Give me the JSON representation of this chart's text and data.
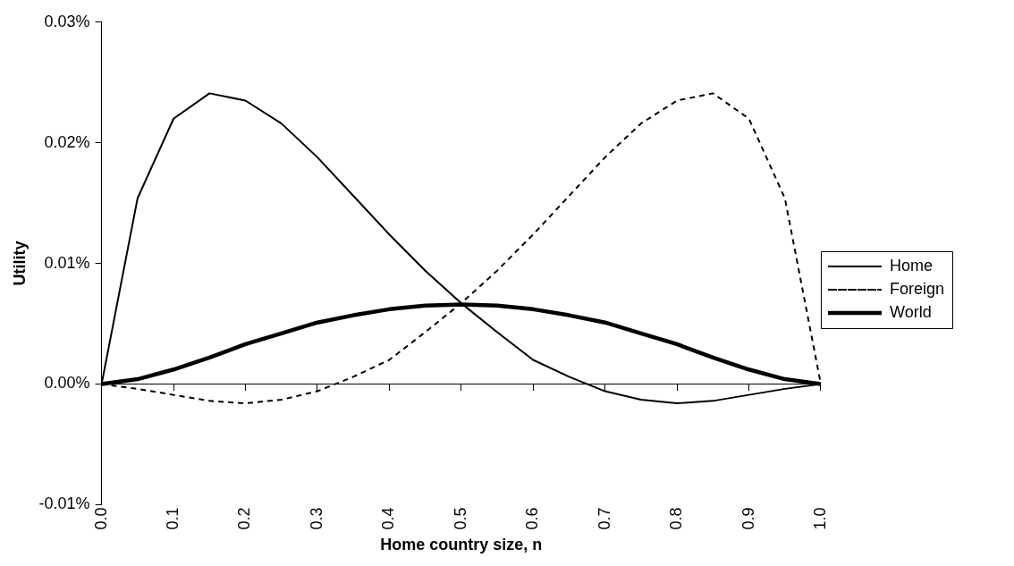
{
  "chart_data": {
    "type": "line",
    "xlabel": "Home country size, n",
    "ylabel": "Utility",
    "x": [
      0,
      0.05,
      0.1,
      0.15,
      0.2,
      0.25,
      0.3,
      0.35,
      0.4,
      0.45,
      0.5,
      0.55,
      0.6,
      0.65,
      0.7,
      0.75,
      0.8,
      0.85,
      0.9,
      0.95,
      1.0
    ],
    "series": [
      {
        "name": "Home",
        "color": "#000000",
        "line_style": "solid",
        "values": [
          0,
          0.0154,
          0.022,
          0.0241,
          0.0235,
          0.0216,
          0.0188,
          0.0156,
          0.0124,
          0.0094,
          0.0067,
          0.0043,
          0.002,
          0.0006,
          -0.0006,
          -0.0013,
          -0.0016,
          -0.0014,
          -0.0009,
          -0.0004,
          0
        ]
      },
      {
        "name": "Foreign",
        "color": "#000000",
        "line_style": "dashed",
        "values": [
          0,
          -0.0004,
          -0.0009,
          -0.0014,
          -0.0016,
          -0.0013,
          -0.0006,
          0.0006,
          0.002,
          0.0043,
          0.0067,
          0.0094,
          0.0124,
          0.0156,
          0.0188,
          0.0216,
          0.0235,
          0.0241,
          0.022,
          0.0154,
          0
        ]
      },
      {
        "name": "World",
        "color": "#000000",
        "line_style": "solid",
        "values": [
          0,
          0.0004,
          0.0012,
          0.0022,
          0.0033,
          0.0042,
          0.0051,
          0.0057,
          0.0062,
          0.0065,
          0.0066,
          0.0065,
          0.0062,
          0.0057,
          0.0051,
          0.0042,
          0.0033,
          0.0022,
          0.0012,
          0.0004,
          0
        ]
      }
    ],
    "xlim": [
      0,
      1
    ],
    "xticks": [
      {
        "value": 0,
        "label": "0.0"
      },
      0.1,
      0.2,
      0.3,
      0.4,
      0.5,
      0.6,
      0.7,
      0.8,
      0.9,
      {
        "value": 1,
        "label": "1.0"
      }
    ],
    "ylim": [
      -0.01,
      0.03
    ],
    "yticks": [
      {
        "value": -0.01,
        "label": "-0.01%"
      },
      {
        "value": 0,
        "label": "0.00%"
      },
      {
        "value": 0.01,
        "label": "0.01%"
      },
      {
        "value": 0.02,
        "label": "0.02%"
      },
      {
        "value": 0.03,
        "label": "0.03%"
      }
    ],
    "legend": "right",
    "marker": "none"
  }
}
